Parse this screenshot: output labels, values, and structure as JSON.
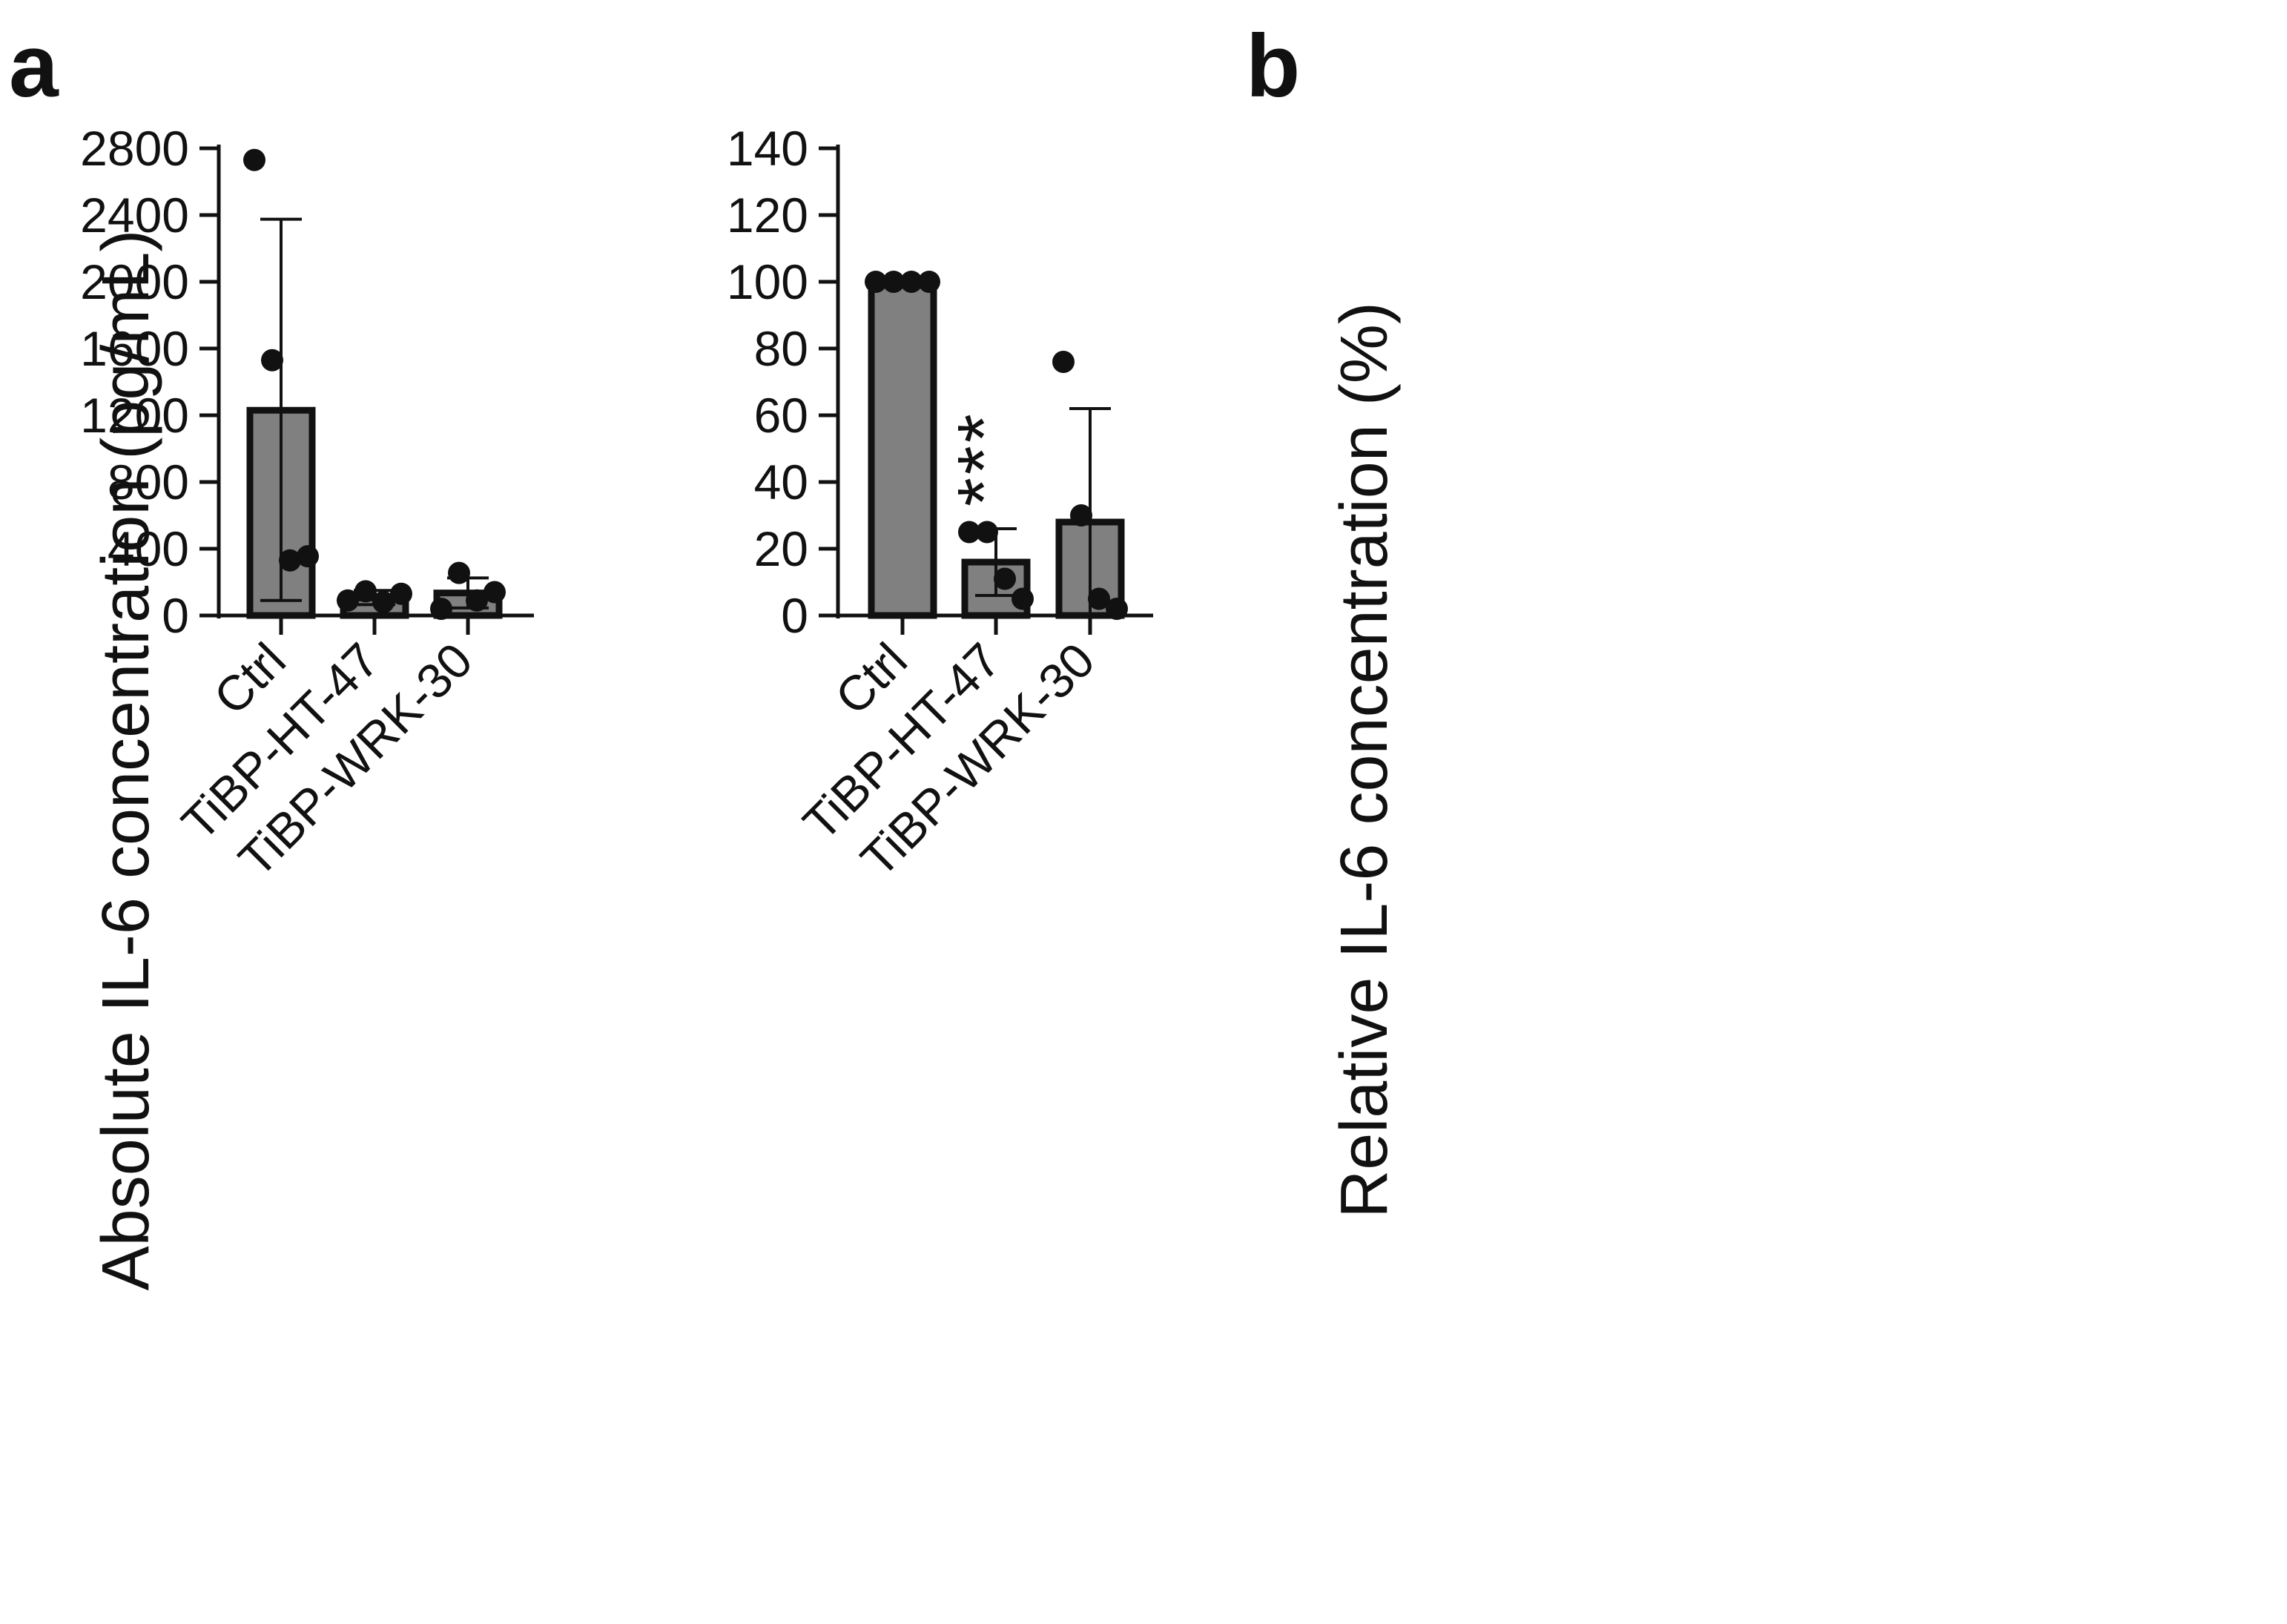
{
  "chart_data": [
    {
      "panel_label": "a",
      "type": "bar",
      "ylabel": "Absolute IL-6 concentration (pg/mL)",
      "xlabel": "",
      "ylim": [
        0,
        2800
      ],
      "yticks": [
        0,
        400,
        800,
        1200,
        1600,
        2000,
        2400,
        2800
      ],
      "categories": [
        "Ctrl",
        "TiBP-HT-47",
        "TiBP-WRK-30"
      ],
      "values": [
        1230,
        105,
        135
      ],
      "error_low": [
        90,
        65,
        45
      ],
      "error_high": [
        2375,
        150,
        225
      ],
      "points": [
        [
          2730,
          1530,
          330,
          355
        ],
        [
          90,
          145,
          80,
          130
        ],
        [
          40,
          255,
          90,
          140
        ]
      ],
      "annotations": [
        "",
        "",
        ""
      ]
    },
    {
      "panel_label": "b",
      "type": "bar",
      "ylabel": "Relative IL-6 concentration (%)",
      "xlabel": "",
      "ylim": [
        0,
        140
      ],
      "yticks": [
        0,
        20,
        40,
        60,
        80,
        100,
        120,
        140
      ],
      "categories": [
        "Ctrl",
        "TiBP-HT-47",
        "TiBP-WRK-30"
      ],
      "values": [
        100,
        16,
        28
      ],
      "error_low": [
        100,
        6,
        0
      ],
      "error_high": [
        100,
        26,
        62
      ],
      "points": [
        [
          100,
          100,
          100,
          100
        ],
        [
          25,
          25,
          11,
          5
        ],
        [
          76,
          30,
          5,
          2
        ]
      ],
      "annotations": [
        "",
        "***",
        ""
      ]
    }
  ],
  "colors": {
    "bar_fill": "#808080",
    "ink": "#111111",
    "background": "#ffffff"
  }
}
